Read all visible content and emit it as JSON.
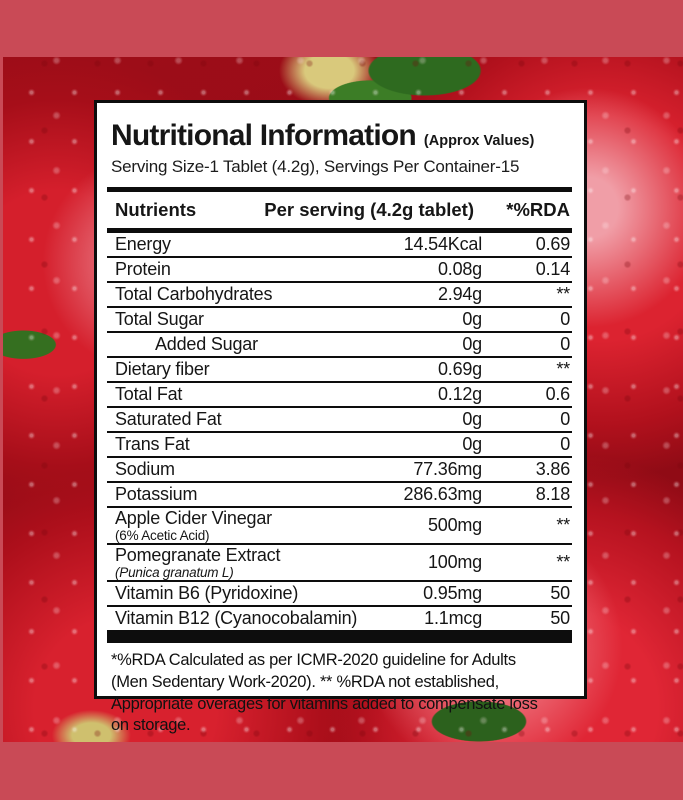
{
  "background": {
    "frame_color": "#c94a56",
    "photo_description": "red apples with water droplets and green leaves"
  },
  "label": {
    "title": "Nutritional Information",
    "title_suffix": "(Approx Values)",
    "serving_line": "Serving Size-1 Tablet (4.2g), Servings Per Container-15",
    "table": {
      "headers": {
        "nutrients": "Nutrients",
        "per_serving": "Per serving (4.2g tablet)",
        "rda": "*%RDA"
      },
      "rows": [
        {
          "name": "Energy",
          "value": "14.54Kcal",
          "rda": "0.69"
        },
        {
          "name": "Protein",
          "value": "0.08g",
          "rda": "0.14"
        },
        {
          "name": "Total Carbohydrates",
          "value": "2.94g",
          "rda": "**"
        },
        {
          "name": "Total Sugar",
          "value": "0g",
          "rda": "0"
        },
        {
          "name": "Added Sugar",
          "indent": true,
          "value": "0g",
          "rda": "0"
        },
        {
          "name": "Dietary fiber",
          "value": "0.69g",
          "rda": "**"
        },
        {
          "name": "Total Fat",
          "value": "0.12g",
          "rda": "0.6"
        },
        {
          "name": "Saturated Fat",
          "value": "0g",
          "rda": "0"
        },
        {
          "name": "Trans Fat",
          "value": "0g",
          "rda": "0"
        },
        {
          "name": "Sodium",
          "value": "77.36mg",
          "rda": "3.86"
        },
        {
          "name": "Potassium",
          "value": "286.63mg",
          "rda": "8.18"
        },
        {
          "name": "Apple Cider Vinegar",
          "sub": "(6% Acetic Acid)",
          "sub_italic": false,
          "value": "500mg",
          "rda": "**"
        },
        {
          "name": "Pomegranate Extract",
          "sub": "(Punica granatum L)",
          "sub_italic": true,
          "value": "100mg",
          "rda": "**"
        },
        {
          "name": "Vitamin B6 (Pyridoxine)",
          "value": "0.95mg",
          "rda": "50"
        },
        {
          "name": "Vitamin B12 (Cyanocobalamin)",
          "value": "1.1mcg",
          "rda": "50"
        }
      ]
    },
    "footnote": "*%RDA Calculated as per ICMR-2020 guideline for Adults (Men Sedentary Work-2020). ** %RDA not established, Appropriate overages for vitamins added to compensate loss on storage."
  }
}
